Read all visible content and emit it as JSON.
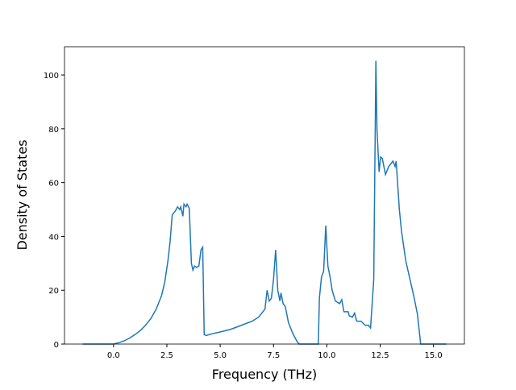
{
  "chart_data": {
    "type": "line",
    "xlabel": "Frequency (THz)",
    "ylabel": "Density of States",
    "x": [
      -1.45,
      -0.5,
      0.0,
      0.25,
      0.5,
      0.75,
      1.0,
      1.25,
      1.5,
      1.75,
      2.0,
      2.25,
      2.4,
      2.55,
      2.65,
      2.75,
      2.9,
      3.0,
      3.1,
      3.15,
      3.25,
      3.3,
      3.4,
      3.45,
      3.55,
      3.65,
      3.72,
      3.8,
      3.9,
      4.0,
      4.1,
      4.18,
      4.25,
      4.35,
      4.6,
      5.0,
      5.5,
      6.0,
      6.5,
      6.8,
      7.0,
      7.1,
      7.2,
      7.3,
      7.4,
      7.5,
      7.6,
      7.7,
      7.8,
      7.85,
      7.95,
      8.05,
      8.2,
      8.4,
      8.6,
      8.7,
      9.5,
      9.6,
      9.65,
      9.75,
      9.85,
      9.95,
      10.05,
      10.15,
      10.25,
      10.4,
      10.6,
      10.7,
      10.8,
      11.0,
      11.05,
      11.2,
      11.3,
      11.4,
      11.6,
      11.8,
      11.95,
      12.05,
      12.2,
      12.3,
      12.35,
      12.45,
      12.52,
      12.6,
      12.75,
      12.9,
      13.1,
      13.2,
      13.25,
      13.4,
      13.5,
      13.7,
      13.9,
      14.1,
      14.25,
      14.4,
      15.6
    ],
    "series": [
      {
        "color": "#1f77b4",
        "values": [
          0,
          0,
          0,
          0.5,
          1.2,
          2.2,
          3.5,
          5,
          7,
          9.5,
          13,
          18,
          23,
          31,
          38,
          48,
          49.5,
          51,
          50,
          51,
          47.5,
          52,
          51,
          52,
          50.5,
          30,
          27.5,
          29,
          28.5,
          29,
          35,
          36,
          3.5,
          3.2,
          3.8,
          4.5,
          5.5,
          7,
          8.5,
          10,
          12,
          13,
          20,
          16,
          17,
          24,
          35,
          20,
          16,
          19,
          15,
          14,
          8,
          4,
          1,
          0,
          0,
          0,
          17,
          25,
          27,
          44,
          29,
          25,
          20,
          16,
          15,
          16.5,
          12,
          12,
          10.5,
          10,
          11.5,
          8.5,
          8.5,
          7,
          7,
          6,
          24,
          105.3,
          80,
          64,
          69.5,
          69,
          63,
          66,
          68,
          66,
          68,
          50,
          42,
          31,
          24,
          17,
          11,
          0,
          0
        ]
      }
    ],
    "xlim": [
      -2.3,
      16.45
    ],
    "ylim": [
      0,
      110.5
    ],
    "xticks": [
      {
        "value": 0,
        "label": "0.0"
      },
      2.5,
      {
        "value": 5,
        "label": "5.0"
      },
      7.5,
      {
        "value": 10,
        "label": "10.0"
      },
      12.5,
      {
        "value": 15,
        "label": "15.0"
      }
    ],
    "yticks": [
      0,
      20,
      40,
      60,
      80,
      100
    ]
  }
}
